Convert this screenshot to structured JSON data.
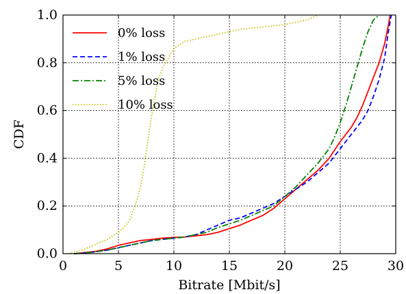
{
  "chart_data": {
    "type": "line",
    "title": "",
    "xlabel": "Bitrate [Mbit/s]",
    "ylabel": "CDF",
    "xlim": [
      0,
      30
    ],
    "ylim": [
      0.0,
      1.0
    ],
    "xticks": [
      "0",
      "5",
      "10",
      "15",
      "20",
      "25",
      "30"
    ],
    "yticks": [
      "0.0",
      "0.2",
      "0.4",
      "0.6",
      "0.8",
      "1.0"
    ],
    "grid": true,
    "legend_position": "top-left",
    "series": [
      {
        "name": "0% loss",
        "color": "#ff0000",
        "dash": "solid",
        "x": [
          1.0,
          2.0,
          3.0,
          4.0,
          5.0,
          6.0,
          7.0,
          8.0,
          9.0,
          10.0,
          11.0,
          12.0,
          13.0,
          14.0,
          15.0,
          16.0,
          17.0,
          18.0,
          19.0,
          20.0,
          21.0,
          22.0,
          23.0,
          24.0,
          25.0,
          26.0,
          26.5,
          27.0,
          27.5,
          28.0,
          28.5,
          29.0,
          29.3,
          29.5
        ],
        "y": [
          0.0,
          0.005,
          0.01,
          0.02,
          0.035,
          0.045,
          0.055,
          0.06,
          0.065,
          0.068,
          0.07,
          0.075,
          0.08,
          0.09,
          0.105,
          0.12,
          0.14,
          0.16,
          0.19,
          0.23,
          0.27,
          0.31,
          0.35,
          0.4,
          0.47,
          0.53,
          0.57,
          0.62,
          0.68,
          0.74,
          0.8,
          0.88,
          0.95,
          1.0
        ]
      },
      {
        "name": "1% loss",
        "color": "#0000ff",
        "dash": "dashed",
        "x": [
          1.0,
          2.0,
          3.0,
          4.0,
          5.0,
          6.0,
          7.0,
          8.0,
          9.0,
          10.0,
          11.0,
          12.0,
          13.0,
          14.0,
          15.0,
          16.0,
          17.0,
          18.0,
          19.0,
          20.0,
          21.0,
          22.0,
          23.0,
          24.0,
          25.0,
          26.0,
          27.0,
          27.5,
          28.0,
          28.5,
          29.0,
          29.3,
          29.6
        ],
        "y": [
          0.0,
          0.003,
          0.008,
          0.015,
          0.025,
          0.035,
          0.045,
          0.055,
          0.06,
          0.065,
          0.07,
          0.08,
          0.1,
          0.12,
          0.14,
          0.15,
          0.17,
          0.19,
          0.21,
          0.24,
          0.27,
          0.3,
          0.34,
          0.38,
          0.44,
          0.5,
          0.56,
          0.6,
          0.66,
          0.73,
          0.82,
          0.92,
          1.0
        ]
      },
      {
        "name": "5% loss",
        "color": "#008000",
        "dash": "dashdot",
        "x": [
          1.0,
          2.0,
          3.0,
          4.0,
          5.0,
          6.0,
          7.0,
          8.0,
          9.0,
          10.0,
          11.0,
          12.0,
          13.0,
          14.0,
          15.0,
          16.0,
          17.0,
          18.0,
          19.0,
          20.0,
          21.0,
          22.0,
          23.0,
          24.0,
          24.5,
          25.0,
          25.5,
          26.0,
          26.5,
          27.0,
          27.5,
          28.0,
          28.5
        ],
        "y": [
          0.0,
          0.003,
          0.008,
          0.015,
          0.025,
          0.035,
          0.045,
          0.055,
          0.06,
          0.065,
          0.07,
          0.08,
          0.09,
          0.11,
          0.125,
          0.14,
          0.16,
          0.18,
          0.2,
          0.24,
          0.28,
          0.33,
          0.38,
          0.44,
          0.49,
          0.55,
          0.62,
          0.7,
          0.78,
          0.86,
          0.93,
          0.98,
          1.0
        ]
      },
      {
        "name": "10% loss",
        "color": "#bfbf00",
        "dash": "dotted",
        "x": [
          0.5,
          1.0,
          2.0,
          3.0,
          4.0,
          5.0,
          5.5,
          6.0,
          6.5,
          7.0,
          7.3,
          7.6,
          8.0,
          8.3,
          8.6,
          9.0,
          9.5,
          10.0,
          11.0,
          12.0,
          13.0,
          14.0,
          15.0,
          16.0,
          18.0,
          20.0,
          21.0,
          22.0,
          22.5,
          23.0
        ],
        "y": [
          0.0,
          0.005,
          0.02,
          0.04,
          0.06,
          0.09,
          0.11,
          0.14,
          0.2,
          0.28,
          0.36,
          0.46,
          0.58,
          0.66,
          0.73,
          0.78,
          0.82,
          0.86,
          0.89,
          0.9,
          0.91,
          0.92,
          0.93,
          0.94,
          0.95,
          0.96,
          0.97,
          0.98,
          0.99,
          1.0
        ]
      }
    ]
  }
}
